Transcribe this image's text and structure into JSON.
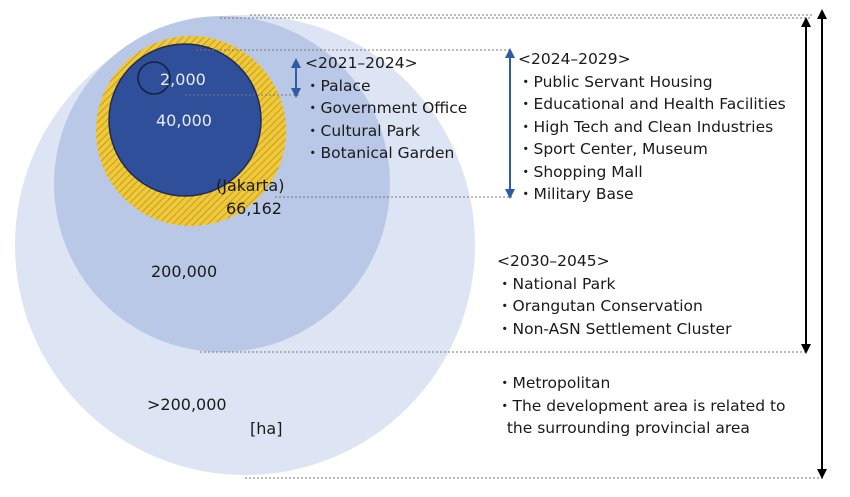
{
  "circles": {
    "outer": {
      "label": ">200,000",
      "color": "#dde4f4"
    },
    "second": {
      "label": "200,000",
      "color": "#b9c8e6"
    },
    "jakarta": {
      "label_name": "(Jakarta)",
      "label_value": "66,162",
      "color": "#f0c93a"
    },
    "core": {
      "label": "40,000",
      "color": "#2f4f9a"
    },
    "inner": {
      "label": "2,000",
      "color": "#2f4f9a"
    }
  },
  "unit": "[ha]",
  "phases": {
    "p1": {
      "heading": "<2021–2024>",
      "items": [
        "・Palace",
        "・Government Office",
        "・Cultural Park",
        "・Botanical Garden"
      ]
    },
    "p2": {
      "heading": "<2024–2029>",
      "items": [
        "・Public Servant Housing",
        "・Educational and Health Facilities",
        "・High Tech and Clean Industries",
        "・Sport Center, Museum",
        "・Shopping Mall",
        "・Military Base"
      ]
    },
    "p3": {
      "heading": "<2030–2045>",
      "items": [
        "・National Park",
        "・Orangutan Conservation",
        "・Non-ASN Settlement Cluster"
      ]
    },
    "p4": {
      "items": [
        "・Metropolitan",
        "・The development area is related to",
        "  the surrounding provincial area"
      ]
    }
  },
  "arrow_color_blue": "#2e5aa8",
  "arrow_color_black": "#000000"
}
